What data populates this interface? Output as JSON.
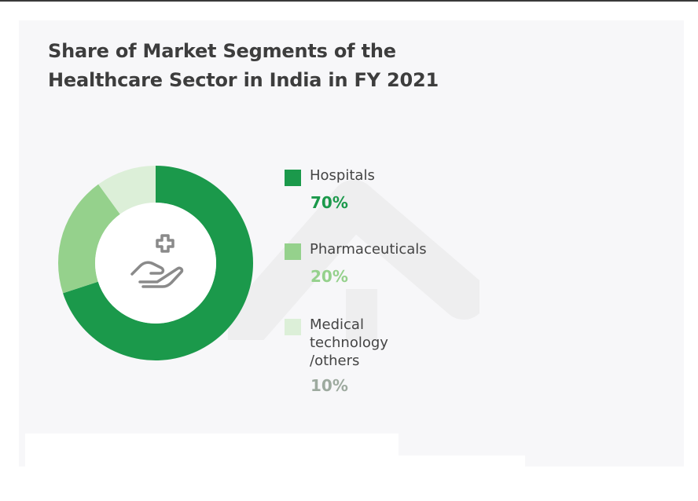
{
  "chart_data": {
    "type": "pie",
    "title": "Share of Market Segments of the Healthcare Sector in India in FY 2021",
    "title_lines": [
      "Share of Market Segments of the",
      "Healthcare Sector in India in FY 2021"
    ],
    "categories": [
      "Hospitals",
      "Pharmaceuticals",
      "Medical technology /others"
    ],
    "values": [
      70,
      20,
      10
    ],
    "value_labels": [
      "70%",
      "20%",
      "10%"
    ],
    "label_lines": [
      [
        "Hospitals"
      ],
      [
        "Pharmaceuticals"
      ],
      [
        "Medical",
        "technology",
        "/others"
      ]
    ],
    "colors": [
      "#1b994b",
      "#95d18c",
      "#dcefd8"
    ],
    "value_label_colors": [
      "#1b994b",
      "#95d18c",
      "#9daa9f"
    ],
    "legend": "right",
    "center_icon": "hand-medical-cross-icon",
    "watermark_icon": "upward-arrow-watermark"
  }
}
